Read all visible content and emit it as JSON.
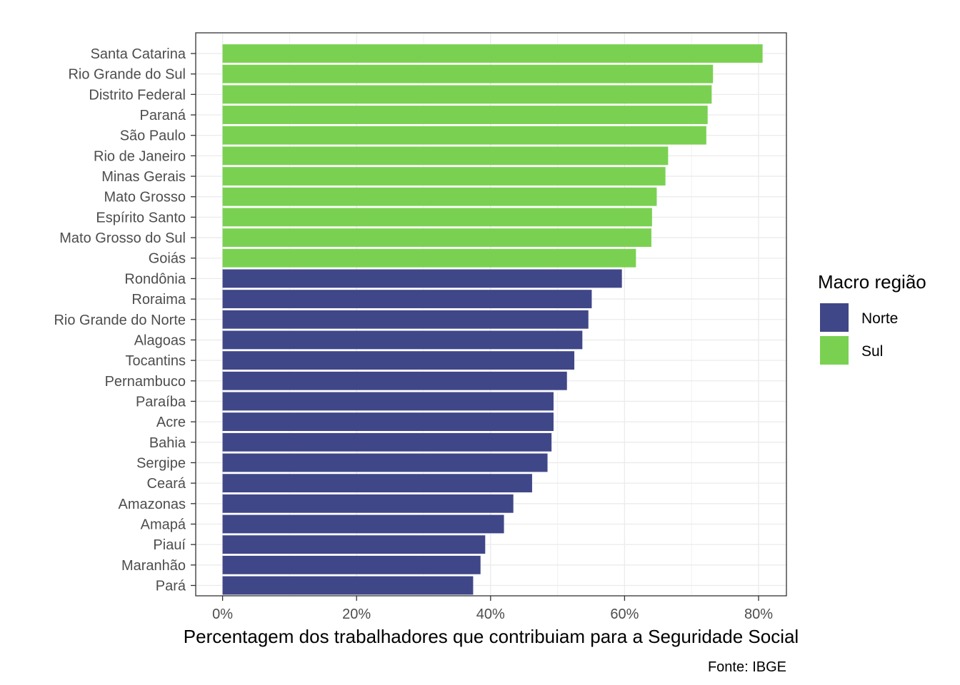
{
  "chart_data": {
    "type": "bar",
    "orientation": "horizontal",
    "xlabel": "Percentagem dos trabalhadores que contribuiam para a Seguridade Social",
    "ylabel": "",
    "caption": "Fonte: IBGE",
    "xlim": [
      0,
      0.8
    ],
    "x_ticks": [
      0,
      0.2,
      0.4,
      0.6,
      0.8
    ],
    "x_tick_labels": [
      "0%",
      "20%",
      "40%",
      "60%",
      "80%"
    ],
    "grid": true,
    "legend": {
      "title": "Macro região",
      "placement": "right",
      "entries": [
        {
          "name": "Norte",
          "color": "#404788"
        },
        {
          "name": "Sul",
          "color": "#7AD151"
        }
      ]
    },
    "bars": [
      {
        "category": "Santa Catarina",
        "value": 0.806,
        "group": "Sul"
      },
      {
        "category": "Rio Grande do Sul",
        "value": 0.732,
        "group": "Sul"
      },
      {
        "category": "Distrito Federal",
        "value": 0.73,
        "group": "Sul"
      },
      {
        "category": "Paraná",
        "value": 0.724,
        "group": "Sul"
      },
      {
        "category": "São Paulo",
        "value": 0.722,
        "group": "Sul"
      },
      {
        "category": "Rio de Janeiro",
        "value": 0.665,
        "group": "Sul"
      },
      {
        "category": "Minas Gerais",
        "value": 0.661,
        "group": "Sul"
      },
      {
        "category": "Mato Grosso",
        "value": 0.648,
        "group": "Sul"
      },
      {
        "category": "Espírito Santo",
        "value": 0.641,
        "group": "Sul"
      },
      {
        "category": "Mato Grosso do Sul",
        "value": 0.64,
        "group": "Sul"
      },
      {
        "category": "Goiás",
        "value": 0.617,
        "group": "Sul"
      },
      {
        "category": "Rondônia",
        "value": 0.596,
        "group": "Norte"
      },
      {
        "category": "Roraima",
        "value": 0.551,
        "group": "Norte"
      },
      {
        "category": "Rio Grande do Norte",
        "value": 0.546,
        "group": "Norte"
      },
      {
        "category": "Alagoas",
        "value": 0.537,
        "group": "Norte"
      },
      {
        "category": "Tocantins",
        "value": 0.525,
        "group": "Norte"
      },
      {
        "category": "Pernambuco",
        "value": 0.514,
        "group": "Norte"
      },
      {
        "category": "Paraíba",
        "value": 0.494,
        "group": "Norte"
      },
      {
        "category": "Acre",
        "value": 0.494,
        "group": "Norte"
      },
      {
        "category": "Bahia",
        "value": 0.491,
        "group": "Norte"
      },
      {
        "category": "Sergipe",
        "value": 0.485,
        "group": "Norte"
      },
      {
        "category": "Ceará",
        "value": 0.462,
        "group": "Norte"
      },
      {
        "category": "Amazonas",
        "value": 0.434,
        "group": "Norte"
      },
      {
        "category": "Amapá",
        "value": 0.42,
        "group": "Norte"
      },
      {
        "category": "Piauí",
        "value": 0.392,
        "group": "Norte"
      },
      {
        "category": "Maranhão",
        "value": 0.385,
        "group": "Norte"
      },
      {
        "category": "Pará",
        "value": 0.374,
        "group": "Norte"
      }
    ]
  }
}
